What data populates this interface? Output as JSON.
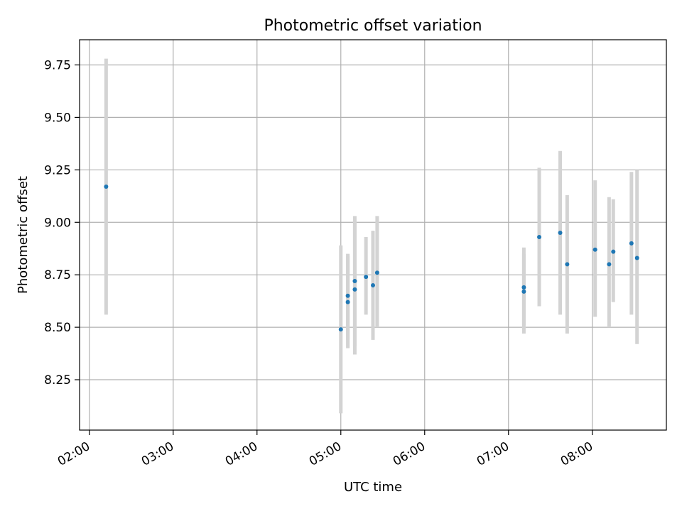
{
  "chart_data": {
    "type": "scatter",
    "title": "Photometric offset variation",
    "xlabel": "UTC time",
    "ylabel": "Photometric offset",
    "x_unit": "UTC time (HH:MM)",
    "xlim": [
      "01:53",
      "08:53"
    ],
    "ylim": [
      8.01,
      9.87
    ],
    "x_ticks": [
      "02:00",
      "03:00",
      "04:00",
      "05:00",
      "06:00",
      "07:00",
      "08:00"
    ],
    "y_ticks": [
      8.25,
      8.5,
      8.75,
      9.0,
      9.25,
      9.5,
      9.75
    ],
    "y_tick_labels": [
      "8.25",
      "8.50",
      "8.75",
      "9.00",
      "9.25",
      "9.50",
      "9.75"
    ],
    "grid": true,
    "point_color": "#1f77b4",
    "errorbar_color": "#d3d3d3",
    "points": [
      {
        "x": "02:12",
        "y": 9.17,
        "lo": 8.56,
        "hi": 9.78
      },
      {
        "x": "05:00",
        "y": 8.49,
        "lo": 8.09,
        "hi": 8.89
      },
      {
        "x": "05:05",
        "y": 8.62,
        "lo": 8.4,
        "hi": 8.84
      },
      {
        "x": "05:05",
        "y": 8.65,
        "lo": 8.44,
        "hi": 8.85
      },
      {
        "x": "05:10",
        "y": 8.72,
        "lo": 8.41,
        "hi": 9.03
      },
      {
        "x": "05:10",
        "y": 8.68,
        "lo": 8.37,
        "hi": 9.0
      },
      {
        "x": "05:18",
        "y": 8.74,
        "lo": 8.56,
        "hi": 8.93
      },
      {
        "x": "05:23",
        "y": 8.7,
        "lo": 8.44,
        "hi": 8.96
      },
      {
        "x": "05:26",
        "y": 8.76,
        "lo": 8.5,
        "hi": 9.03
      },
      {
        "x": "07:11",
        "y": 8.67,
        "lo": 8.47,
        "hi": 8.88
      },
      {
        "x": "07:11",
        "y": 8.69,
        "lo": 8.51,
        "hi": 8.85
      },
      {
        "x": "07:22",
        "y": 8.93,
        "lo": 8.6,
        "hi": 9.26
      },
      {
        "x": "07:37",
        "y": 8.95,
        "lo": 8.56,
        "hi": 9.34
      },
      {
        "x": "07:42",
        "y": 8.8,
        "lo": 8.47,
        "hi": 9.13
      },
      {
        "x": "08:02",
        "y": 8.87,
        "lo": 8.55,
        "hi": 9.2
      },
      {
        "x": "08:12",
        "y": 8.8,
        "lo": 8.5,
        "hi": 9.12
      },
      {
        "x": "08:15",
        "y": 8.86,
        "lo": 8.62,
        "hi": 9.11
      },
      {
        "x": "08:28",
        "y": 8.9,
        "lo": 8.56,
        "hi": 9.24
      },
      {
        "x": "08:32",
        "y": 8.83,
        "lo": 8.42,
        "hi": 9.25
      }
    ]
  }
}
